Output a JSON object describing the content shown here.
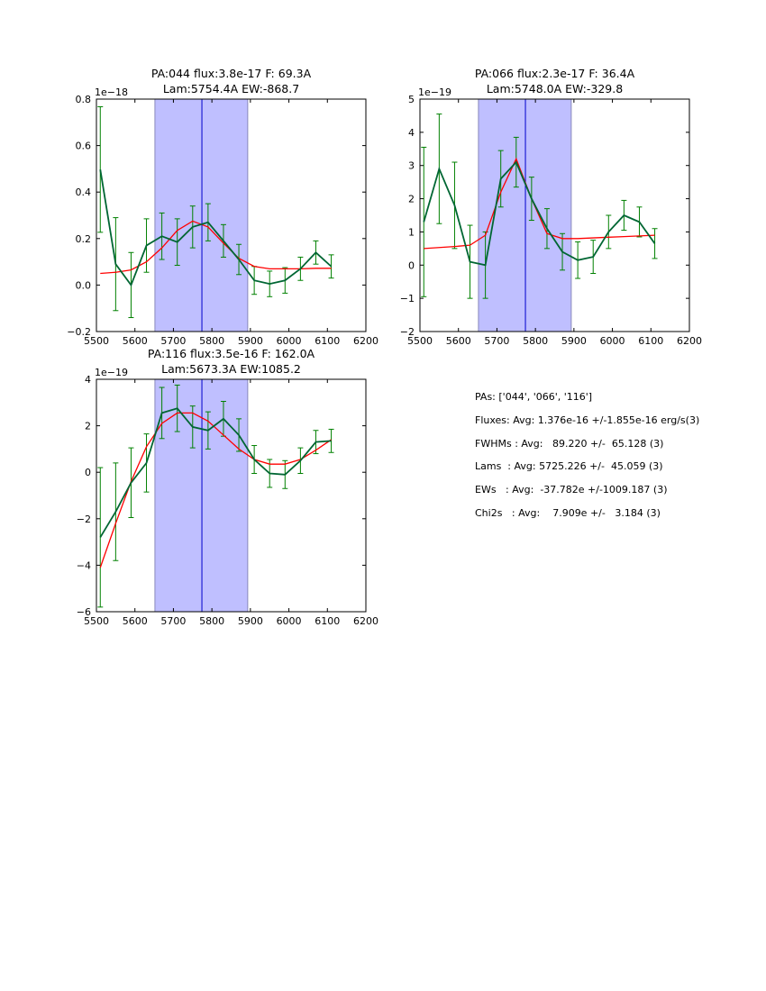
{
  "chart_data": [
    {
      "type": "line",
      "title": [
        "PA:044 flux:3.8e-17 F: 69.3A",
        "Lam:5754.4A EW:-868.7"
      ],
      "multiplier": "1e−18",
      "xlim": [
        5500,
        6200
      ],
      "ylim": [
        -0.2,
        0.8
      ],
      "xticks": [
        5500,
        5600,
        5700,
        5800,
        5900,
        6000,
        6100,
        6200
      ],
      "yticks": [
        -0.2,
        0.0,
        0.2,
        0.4,
        0.6,
        0.8
      ],
      "ytick_labels": [
        "−0.2",
        "0.0",
        "0.2",
        "0.4",
        "0.6",
        "0.8"
      ],
      "shaded_region": [
        5652,
        5893
      ],
      "center_line": 5774,
      "x": [
        5510,
        5550,
        5590,
        5630,
        5670,
        5710,
        5750,
        5790,
        5830,
        5870,
        5910,
        5950,
        5990,
        6030,
        6070,
        6110
      ],
      "series": [
        {
          "name": "data",
          "values": [
            0.497,
            0.09,
            0.0,
            0.17,
            0.21,
            0.185,
            0.25,
            0.27,
            0.19,
            0.11,
            0.02,
            0.005,
            0.02,
            0.07,
            0.14,
            0.08
          ],
          "errors": [
            0.27,
            0.2,
            0.14,
            0.115,
            0.1,
            0.1,
            0.09,
            0.08,
            0.07,
            0.065,
            0.06,
            0.055,
            0.055,
            0.05,
            0.05,
            0.05
          ]
        },
        {
          "name": "fit",
          "values": [
            0.05,
            0.055,
            0.065,
            0.1,
            0.16,
            0.235,
            0.275,
            0.25,
            0.18,
            0.115,
            0.08,
            0.07,
            0.07,
            0.07,
            0.072,
            0.072
          ]
        }
      ]
    },
    {
      "type": "line",
      "title": [
        "PA:066 flux:2.3e-17 F: 36.4A",
        "Lam:5748.0A EW:-329.8"
      ],
      "multiplier": "1e−19",
      "xlim": [
        5500,
        6200
      ],
      "ylim": [
        -2,
        5
      ],
      "xticks": [
        5500,
        5600,
        5700,
        5800,
        5900,
        6000,
        6100,
        6200
      ],
      "yticks": [
        -2,
        -1,
        0,
        1,
        2,
        3,
        4,
        5
      ],
      "ytick_labels": [
        "−2",
        "−1",
        "0",
        "1",
        "2",
        "3",
        "4",
        "5"
      ],
      "shaded_region": [
        5652,
        5893
      ],
      "center_line": 5774,
      "x": [
        5510,
        5550,
        5590,
        5630,
        5670,
        5710,
        5750,
        5790,
        5830,
        5870,
        5910,
        5950,
        5990,
        6030,
        6070,
        6110
      ],
      "series": [
        {
          "name": "data",
          "values": [
            1.3,
            2.9,
            1.8,
            0.1,
            0.0,
            2.6,
            3.1,
            2.0,
            1.1,
            0.4,
            0.15,
            0.25,
            1.0,
            1.5,
            1.3,
            0.65
          ],
          "errors": [
            2.25,
            1.65,
            1.3,
            1.1,
            1.0,
            0.85,
            0.75,
            0.65,
            0.6,
            0.55,
            0.55,
            0.5,
            0.5,
            0.45,
            0.45,
            0.45
          ]
        },
        {
          "name": "fit",
          "values": [
            0.5,
            0.53,
            0.56,
            0.6,
            0.9,
            2.2,
            3.2,
            2.0,
            0.95,
            0.8,
            0.8,
            0.82,
            0.84,
            0.86,
            0.88,
            0.9
          ]
        }
      ]
    },
    {
      "type": "line",
      "title": [
        "PA:116 flux:3.5e-16 F: 162.0A",
        "Lam:5673.3A EW:1085.2"
      ],
      "multiplier": "1e−19",
      "xlim": [
        5500,
        6200
      ],
      "ylim": [
        -6,
        4
      ],
      "xticks": [
        5500,
        5600,
        5700,
        5800,
        5900,
        6000,
        6100,
        6200
      ],
      "yticks": [
        -6,
        -4,
        -2,
        0,
        2,
        4
      ],
      "ytick_labels": [
        "−6",
        "−4",
        "−2",
        "0",
        "2",
        "4"
      ],
      "shaded_region": [
        5652,
        5893
      ],
      "center_line": 5774,
      "x": [
        5510,
        5550,
        5590,
        5630,
        5670,
        5710,
        5750,
        5790,
        5830,
        5870,
        5910,
        5950,
        5990,
        6030,
        6070,
        6110
      ],
      "series": [
        {
          "name": "data",
          "values": [
            -2.8,
            -1.7,
            -0.45,
            0.4,
            2.55,
            2.75,
            1.95,
            1.8,
            2.3,
            1.6,
            0.55,
            -0.05,
            -0.1,
            0.5,
            1.3,
            1.35
          ],
          "errors": [
            3.0,
            2.1,
            1.5,
            1.25,
            1.1,
            1.0,
            0.9,
            0.8,
            0.75,
            0.7,
            0.6,
            0.6,
            0.6,
            0.55,
            0.5,
            0.5
          ]
        },
        {
          "name": "fit",
          "values": [
            -4.1,
            -2.2,
            -0.4,
            1.1,
            2.1,
            2.55,
            2.55,
            2.2,
            1.6,
            1.0,
            0.55,
            0.35,
            0.35,
            0.55,
            0.95,
            1.4
          ]
        }
      ]
    }
  ],
  "summary": [
    "PAs: ['044', '066', '116']",
    "Fluxes: Avg: 1.376e-16 +/-1.855e-16 erg/s(3)",
    "FWHMs : Avg:   89.220 +/-  65.128 (3)",
    "Lams  : Avg: 5725.226 +/-  45.059 (3)",
    "EWs   : Avg:  -37.782e +/-1009.187 (3)",
    "Chi2s   : Avg:    7.909e +/-   3.184 (3)"
  ],
  "colors": {
    "data": "#006633",
    "errorbar": "#008000",
    "fit": "#ff0000",
    "shade": "#bfbfff",
    "shade_edge": "#8888bb",
    "center": "#0000cc"
  }
}
